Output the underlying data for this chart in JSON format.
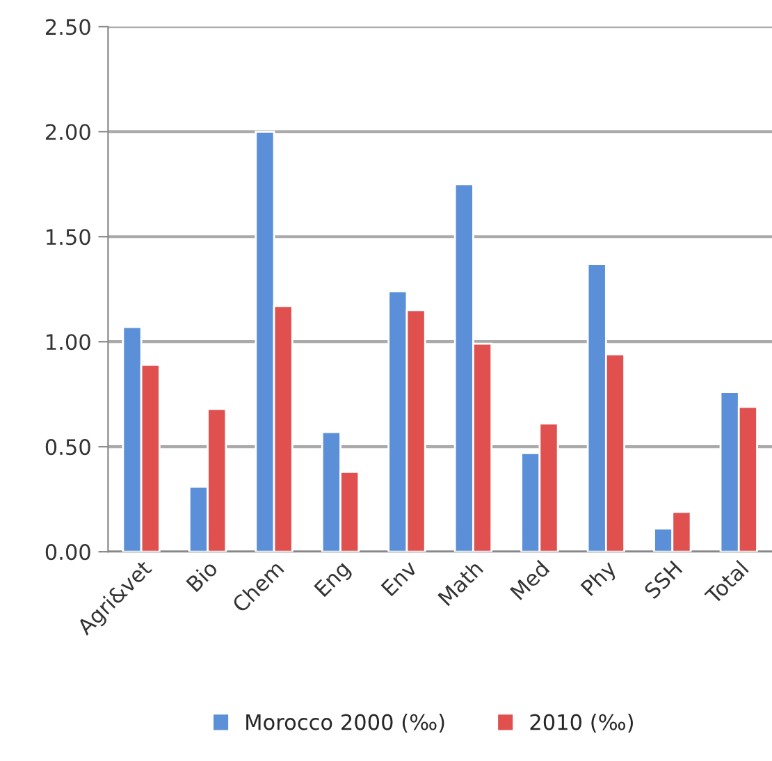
{
  "chart_data": {
    "type": "bar",
    "categories": [
      "Agri&vet",
      "Bio",
      "Chem",
      "Eng",
      "Env",
      "Math",
      "Med",
      "Phy",
      "SSH",
      "Total"
    ],
    "series": [
      {
        "name": "Morocco 2000 (‰)",
        "color": "#5b8fd8",
        "values": [
          1.07,
          0.31,
          2.0,
          0.57,
          1.24,
          1.75,
          0.47,
          1.37,
          0.11,
          0.76
        ]
      },
      {
        "name": "2010 (‰)",
        "color": "#e0504f",
        "values": [
          0.89,
          0.68,
          1.17,
          0.38,
          1.15,
          0.99,
          0.61,
          0.94,
          0.19,
          0.69
        ]
      }
    ],
    "ylim": [
      0,
      2.5
    ],
    "yticks": [
      {
        "value": 0,
        "label": "0.00"
      },
      {
        "value": 0.5,
        "label": "0.50"
      },
      {
        "value": 1,
        "label": "1.00"
      },
      {
        "value": 1.5,
        "label": "1.50"
      },
      {
        "value": 2,
        "label": "2.00"
      },
      {
        "value": 2.5,
        "label": "2.50"
      }
    ],
    "grid": "y",
    "legend": "bottom"
  }
}
